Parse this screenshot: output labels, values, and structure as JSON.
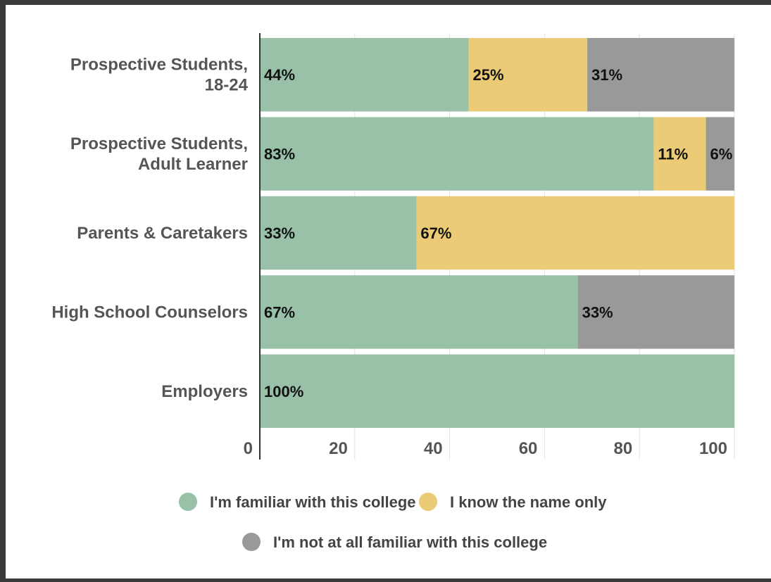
{
  "chart_data": {
    "type": "bar",
    "orientation": "horizontal",
    "stacked": true,
    "categories": [
      [
        "Prospective Students,",
        "18-24"
      ],
      [
        "Prospective Students,",
        "Adult Learner"
      ],
      [
        "Parents & Caretakers"
      ],
      [
        "High School Counselors"
      ],
      [
        "Employers"
      ]
    ],
    "series": [
      {
        "name": "I'm familiar with this college",
        "color": "#98c1a8",
        "values": [
          44,
          83,
          33,
          67,
          100
        ],
        "labels": [
          "44%",
          "83%",
          "33%",
          "67%",
          "100%"
        ]
      },
      {
        "name": "I know the name only",
        "color": "#eccb76",
        "values": [
          25,
          11,
          67,
          0,
          0
        ],
        "labels": [
          "25%",
          "11%",
          "67%",
          "",
          ""
        ]
      },
      {
        "name": "I'm not at all familiar with this college",
        "color": "#999999",
        "values": [
          31,
          6,
          0,
          33,
          0
        ],
        "labels": [
          "31%",
          "6%",
          "",
          "33%",
          ""
        ]
      }
    ],
    "xlim": [
      0,
      100
    ],
    "xticks": [
      "0",
      "20",
      "40",
      "60",
      "80",
      "100"
    ],
    "grid": true,
    "legend": "bottom"
  }
}
